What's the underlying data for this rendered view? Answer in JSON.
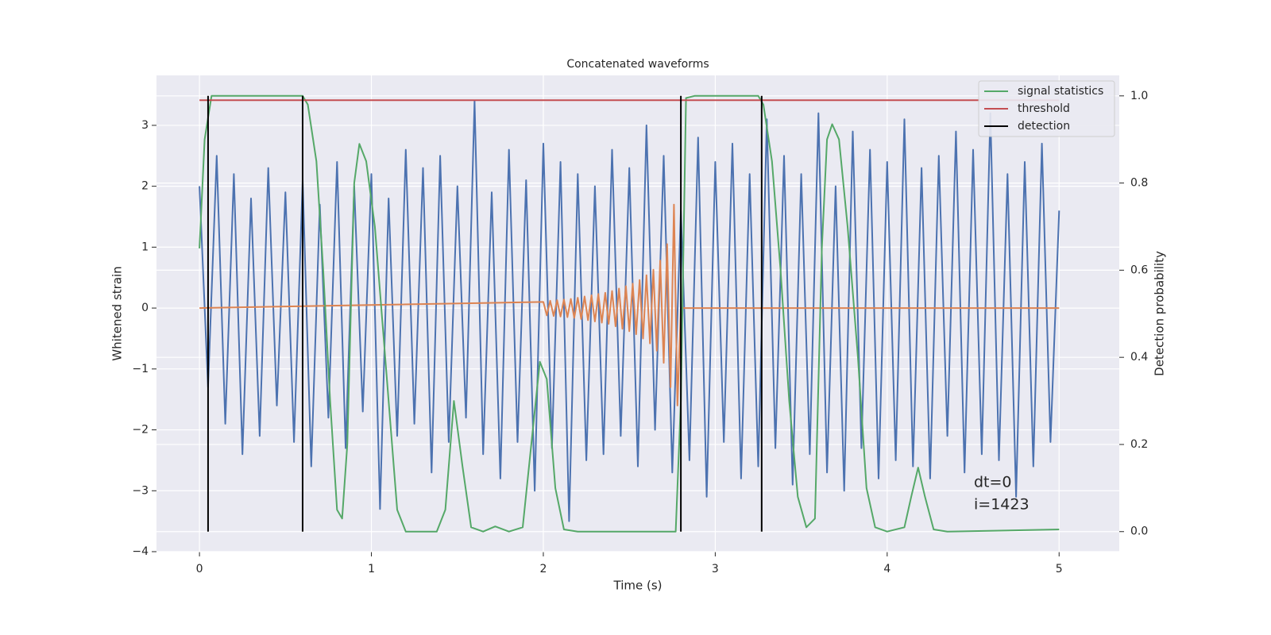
{
  "chart_data": {
    "type": "line",
    "title": "Concatenated waveforms",
    "xlabel": "Time (s)",
    "ylabel": "Whitened strain",
    "y2label": "Detection probability",
    "xlim": [
      -0.25,
      5.35
    ],
    "ylim": [
      -4,
      3.82
    ],
    "y2lim": [
      -0.046,
      1.047
    ],
    "xticks": [
      0,
      1,
      2,
      3,
      4,
      5
    ],
    "yticks": [
      {
        "value": -4,
        "label": "−4"
      },
      {
        "value": -3,
        "label": "−3"
      },
      {
        "value": -2,
        "label": "−2"
      },
      {
        "value": -1,
        "label": "−1"
      },
      0,
      1,
      2,
      3
    ],
    "y2ticks": [
      {
        "value": 0,
        "label": "0.0"
      },
      0.2,
      0.4,
      0.6,
      0.8,
      {
        "value": 1,
        "label": "1.0"
      }
    ],
    "grid": true,
    "legend": "upper right",
    "annotations": [
      "dt=0",
      "i=1423"
    ],
    "series": [
      {
        "color": "#4c72b0",
        "x": [
          0,
          0.05,
          0.1,
          0.15,
          0.2,
          0.25,
          0.3,
          0.35,
          0.4,
          0.45,
          0.5,
          0.55,
          0.6,
          0.65,
          0.7,
          0.75,
          0.8,
          0.85,
          0.9,
          0.95,
          1,
          1.05,
          1.1,
          1.15,
          1.2,
          1.25,
          1.3,
          1.35,
          1.4,
          1.45,
          1.5,
          1.55,
          1.6,
          1.65,
          1.7,
          1.75,
          1.8,
          1.85,
          1.9,
          1.95,
          2,
          2.05,
          2.1,
          2.15,
          2.2,
          2.25,
          2.3,
          2.35,
          2.4,
          2.45,
          2.5,
          2.55,
          2.6,
          2.65,
          2.7,
          2.75,
          2.8,
          2.85,
          2.9,
          2.95,
          3,
          3.05,
          3.1,
          3.15,
          3.2,
          3.25,
          3.3,
          3.35,
          3.4,
          3.45,
          3.5,
          3.55,
          3.6,
          3.65,
          3.7,
          3.75,
          3.8,
          3.85,
          3.9,
          3.95,
          4,
          4.05,
          4.1,
          4.15,
          4.2,
          4.25,
          4.3,
          4.35,
          4.4,
          4.45,
          4.5,
          4.55,
          4.6,
          4.65,
          4.7,
          4.75,
          4.8,
          4.85,
          4.9,
          4.95,
          5
        ],
        "values": [
          2.0,
          -1.3,
          2.5,
          -1.9,
          2.2,
          -2.4,
          1.8,
          -2.1,
          2.3,
          -1.6,
          1.9,
          -2.2,
          2.1,
          -2.6,
          1.7,
          -1.8,
          2.4,
          -2.3,
          2.0,
          -1.7,
          2.2,
          -3.3,
          1.8,
          -2.1,
          2.6,
          -1.9,
          2.3,
          -2.7,
          2.5,
          -2.2,
          2.0,
          -1.8,
          3.4,
          -2.4,
          1.9,
          -2.8,
          2.6,
          -2.2,
          2.1,
          -3.0,
          2.7,
          -2.3,
          2.4,
          -3.5,
          2.2,
          -2.5,
          2.0,
          -2.4,
          2.6,
          -2.1,
          2.3,
          -2.6,
          3.0,
          -2.0,
          2.5,
          -2.7,
          1.6,
          -2.5,
          2.8,
          -3.1,
          2.4,
          -2.2,
          2.7,
          -2.8,
          2.2,
          -2.6,
          3.1,
          -2.3,
          2.5,
          -2.9,
          2.2,
          -2.4,
          3.2,
          -2.7,
          2.0,
          -3.0,
          2.9,
          -2.3,
          2.6,
          -2.8,
          2.4,
          -2.5,
          3.1,
          -2.6,
          2.3,
          -2.8,
          2.5,
          -2.1,
          2.9,
          -2.7,
          2.6,
          -2.4,
          3.2,
          -2.5,
          2.2,
          -3.1,
          2.4,
          -2.6,
          2.7,
          -2.2,
          1.6
        ]
      },
      {
        "color": "#dd8452",
        "x": [
          0,
          2.0,
          2.02,
          2.04,
          2.06,
          2.08,
          2.1,
          2.12,
          2.14,
          2.16,
          2.18,
          2.2,
          2.22,
          2.24,
          2.26,
          2.28,
          2.3,
          2.32,
          2.34,
          2.36,
          2.38,
          2.4,
          2.42,
          2.44,
          2.46,
          2.48,
          2.5,
          2.52,
          2.54,
          2.56,
          2.58,
          2.6,
          2.62,
          2.64,
          2.66,
          2.68,
          2.7,
          2.72,
          2.74,
          2.76,
          2.78,
          2.8,
          5
        ],
        "values": [
          0,
          0.1,
          -0.12,
          0.12,
          -0.13,
          0.13,
          -0.14,
          0.14,
          -0.15,
          0.15,
          -0.16,
          0.17,
          -0.18,
          0.19,
          -0.2,
          0.21,
          -0.22,
          0.23,
          -0.24,
          0.25,
          -0.26,
          0.28,
          -0.3,
          0.32,
          -0.34,
          0.36,
          -0.38,
          0.4,
          -0.43,
          0.46,
          -0.5,
          0.54,
          -0.58,
          0.63,
          -0.7,
          0.78,
          -0.9,
          1.05,
          -1.3,
          1.7,
          -1.6,
          0,
          0
        ]
      },
      {
        "name": "signal statistics",
        "color": "#55a868",
        "axis": "y2",
        "x": [
          0,
          0.03,
          0.07,
          0.1,
          0.6,
          0.63,
          0.68,
          0.72,
          0.76,
          0.8,
          0.83,
          0.86,
          0.9,
          0.93,
          0.97,
          1.02,
          1.08,
          1.15,
          1.2,
          1.38,
          1.43,
          1.48,
          1.53,
          1.58,
          1.65,
          1.72,
          1.8,
          1.88,
          1.93,
          1.98,
          2.02,
          2.07,
          2.12,
          2.2,
          2.77,
          2.8,
          2.83,
          2.88,
          3.25,
          3.28,
          3.33,
          3.38,
          3.43,
          3.48,
          3.53,
          3.58,
          3.62,
          3.65,
          3.68,
          3.72,
          3.77,
          3.83,
          3.88,
          3.93,
          4.0,
          4.1,
          4.14,
          4.18,
          4.22,
          4.27,
          4.35,
          5.0
        ],
        "values": [
          0.65,
          0.9,
          1.0,
          1.0,
          1.0,
          0.98,
          0.85,
          0.6,
          0.3,
          0.05,
          0.03,
          0.2,
          0.8,
          0.89,
          0.85,
          0.7,
          0.4,
          0.05,
          0,
          0,
          0.05,
          0.3,
          0.15,
          0.01,
          0,
          0.012,
          0,
          0.01,
          0.2,
          0.39,
          0.35,
          0.1,
          0.005,
          0,
          0,
          0.3,
          0.995,
          1.0,
          1.0,
          0.98,
          0.85,
          0.6,
          0.3,
          0.08,
          0.01,
          0.03,
          0.65,
          0.9,
          0.935,
          0.9,
          0.7,
          0.4,
          0.1,
          0.01,
          0,
          0.01,
          0.08,
          0.147,
          0.08,
          0.005,
          0,
          0.005
        ]
      },
      {
        "name": "threshold",
        "color": "#c44e52",
        "axis": "y2",
        "x": [
          0,
          5
        ],
        "values": [
          0.99,
          0.99
        ]
      },
      {
        "name": "detection",
        "color": "#000000",
        "axis": "y2",
        "kind": "vlines",
        "x": [
          0.05,
          0.6,
          2.8,
          3.27
        ],
        "ymin": [
          0,
          0,
          0,
          0
        ],
        "ymax": [
          1,
          1,
          1,
          1
        ]
      }
    ]
  }
}
